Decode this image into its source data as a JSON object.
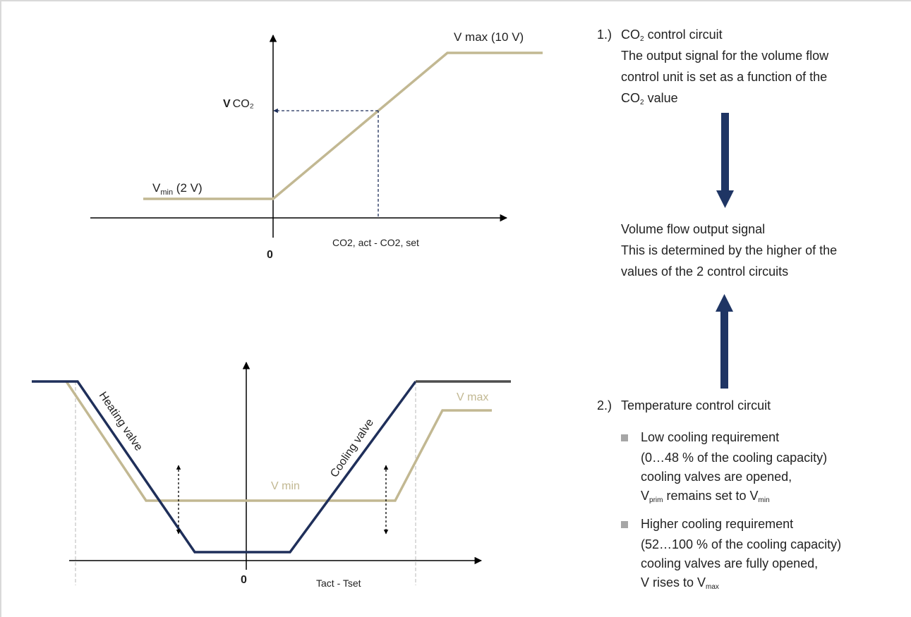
{
  "colors": {
    "beige": "#c2b892",
    "navy": "#1f2f5a",
    "arrow_blue": "#1f3564",
    "grid_grey": "#c8c8c8",
    "text": "#222222",
    "bullet": "#a6a6a6"
  },
  "chart_top": {
    "vmax_label": "V max (10 V)",
    "vco2_label_v": "V",
    "vco2_label_co": "CO₂",
    "vmin_label_main": "V",
    "vmin_label_sub": "min",
    "vmin_label_rest": " (2 V)",
    "origin_label": "0",
    "x_axis_label": "CO2, act - CO2, set"
  },
  "chart_bottom": {
    "vmax_label": "V max",
    "vmin_label": "V min",
    "heating_label": "Heating valve",
    "cooling_label": "Cooling valve",
    "origin_label": "0",
    "x_axis_label": "Tact - Tset"
  },
  "panel": {
    "item1": {
      "number": "1.)",
      "title_pre": "CO",
      "title_sub": "2",
      "title_post": " control circuit",
      "desc_line1": "The output signal for the volume flow",
      "desc_line2": "control unit is set as a function of the",
      "desc_line3_pre": "CO",
      "desc_line3_sub": "2",
      "desc_line3_post": " value"
    },
    "output": {
      "title": "Volume flow output signal",
      "line1": "This is determined by the higher of the",
      "line2": "values of the 2 control circuits"
    },
    "item2": {
      "number": "2.)",
      "title": "Temperature control circuit",
      "bullet1": {
        "title": "Low cooling requirement",
        "line1": "(0…48 % of the cooling capacity)",
        "line2": "cooling valves are opened,",
        "line3_v": "V",
        "line3_sub1": "prim",
        "line3_mid": " remains set to V",
        "line3_sub2": "min"
      },
      "bullet2": {
        "title": "Higher cooling requirement",
        "line1": "(52…100 % of the cooling capacity)",
        "line2": "cooling valves are fully opened,",
        "line3_pre": "V rises to V",
        "line3_sub": "max"
      }
    }
  }
}
